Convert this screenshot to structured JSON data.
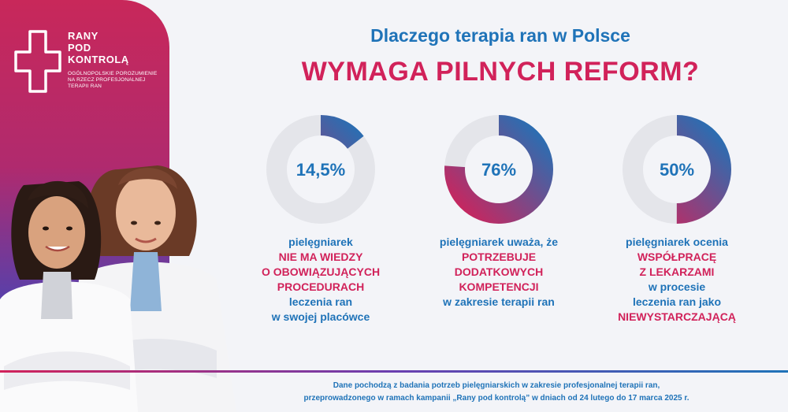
{
  "logo": {
    "title_lines": [
      "RANY",
      "POD",
      "KONTROLĄ"
    ],
    "subtitle_lines": [
      "OGÓLNOPOLSKIE POROZUMIENIE",
      "NA RZECZ PROFESJONALNEJ",
      "TERAPII RAN"
    ]
  },
  "heading": {
    "line1": "Dlaczego terapia ran w Polsce",
    "line2": "WYMAGA PILNYCH REFORM?"
  },
  "stats": [
    {
      "value_label": "14,5%",
      "value": 14.5,
      "text": [
        {
          "t": "pielęgniarek",
          "c": "blue"
        },
        {
          "t": "NIE MA WIEDZY",
          "c": "pink"
        },
        {
          "t": "O OBOWIĄZUJĄCYCH",
          "c": "pink"
        },
        {
          "t": "PROCEDURACH",
          "c": "pink"
        },
        {
          "t": "leczenia ran",
          "c": "blue"
        },
        {
          "t": "w swojej placówce",
          "c": "blue"
        }
      ]
    },
    {
      "value_label": "76%",
      "value": 76,
      "text": [
        {
          "t": "pielęgniarek uważa, że",
          "c": "blue"
        },
        {
          "t": "POTRZEBUJE",
          "c": "pink"
        },
        {
          "t": "DODATKOWYCH",
          "c": "pink"
        },
        {
          "t": "KOMPETENCJI",
          "c": "pink"
        },
        {
          "t": "w zakresie terapii ran",
          "c": "blue"
        }
      ]
    },
    {
      "value_label": "50%",
      "value": 50,
      "text": [
        {
          "t": "pielęgniarek ocenia",
          "c": "blue"
        },
        {
          "t": "WSPÓŁPRACĘ",
          "c": "pink"
        },
        {
          "t": "Z LEKARZAMI",
          "c": "pink"
        },
        {
          "t": "w procesie",
          "c": "blue"
        },
        {
          "t": "leczenia ran jako",
          "c": "blue"
        },
        {
          "t": "NIEWYSTARCZAJĄCĄ",
          "c": "pink"
        }
      ]
    }
  ],
  "footnote": {
    "line1": "Dane pochodzą z badania potrzeb pielęgniarskich w zakresie profesjonalnej terapii ran,",
    "line2": "przeprowadzonego w ramach kampanii „Rany pod kontrolą” w dniach od 24 lutego do 17 marca 2025 r."
  },
  "colors": {
    "blue": "#1f73b8",
    "pink": "#d1225a",
    "track": "#e4e5ea"
  }
}
